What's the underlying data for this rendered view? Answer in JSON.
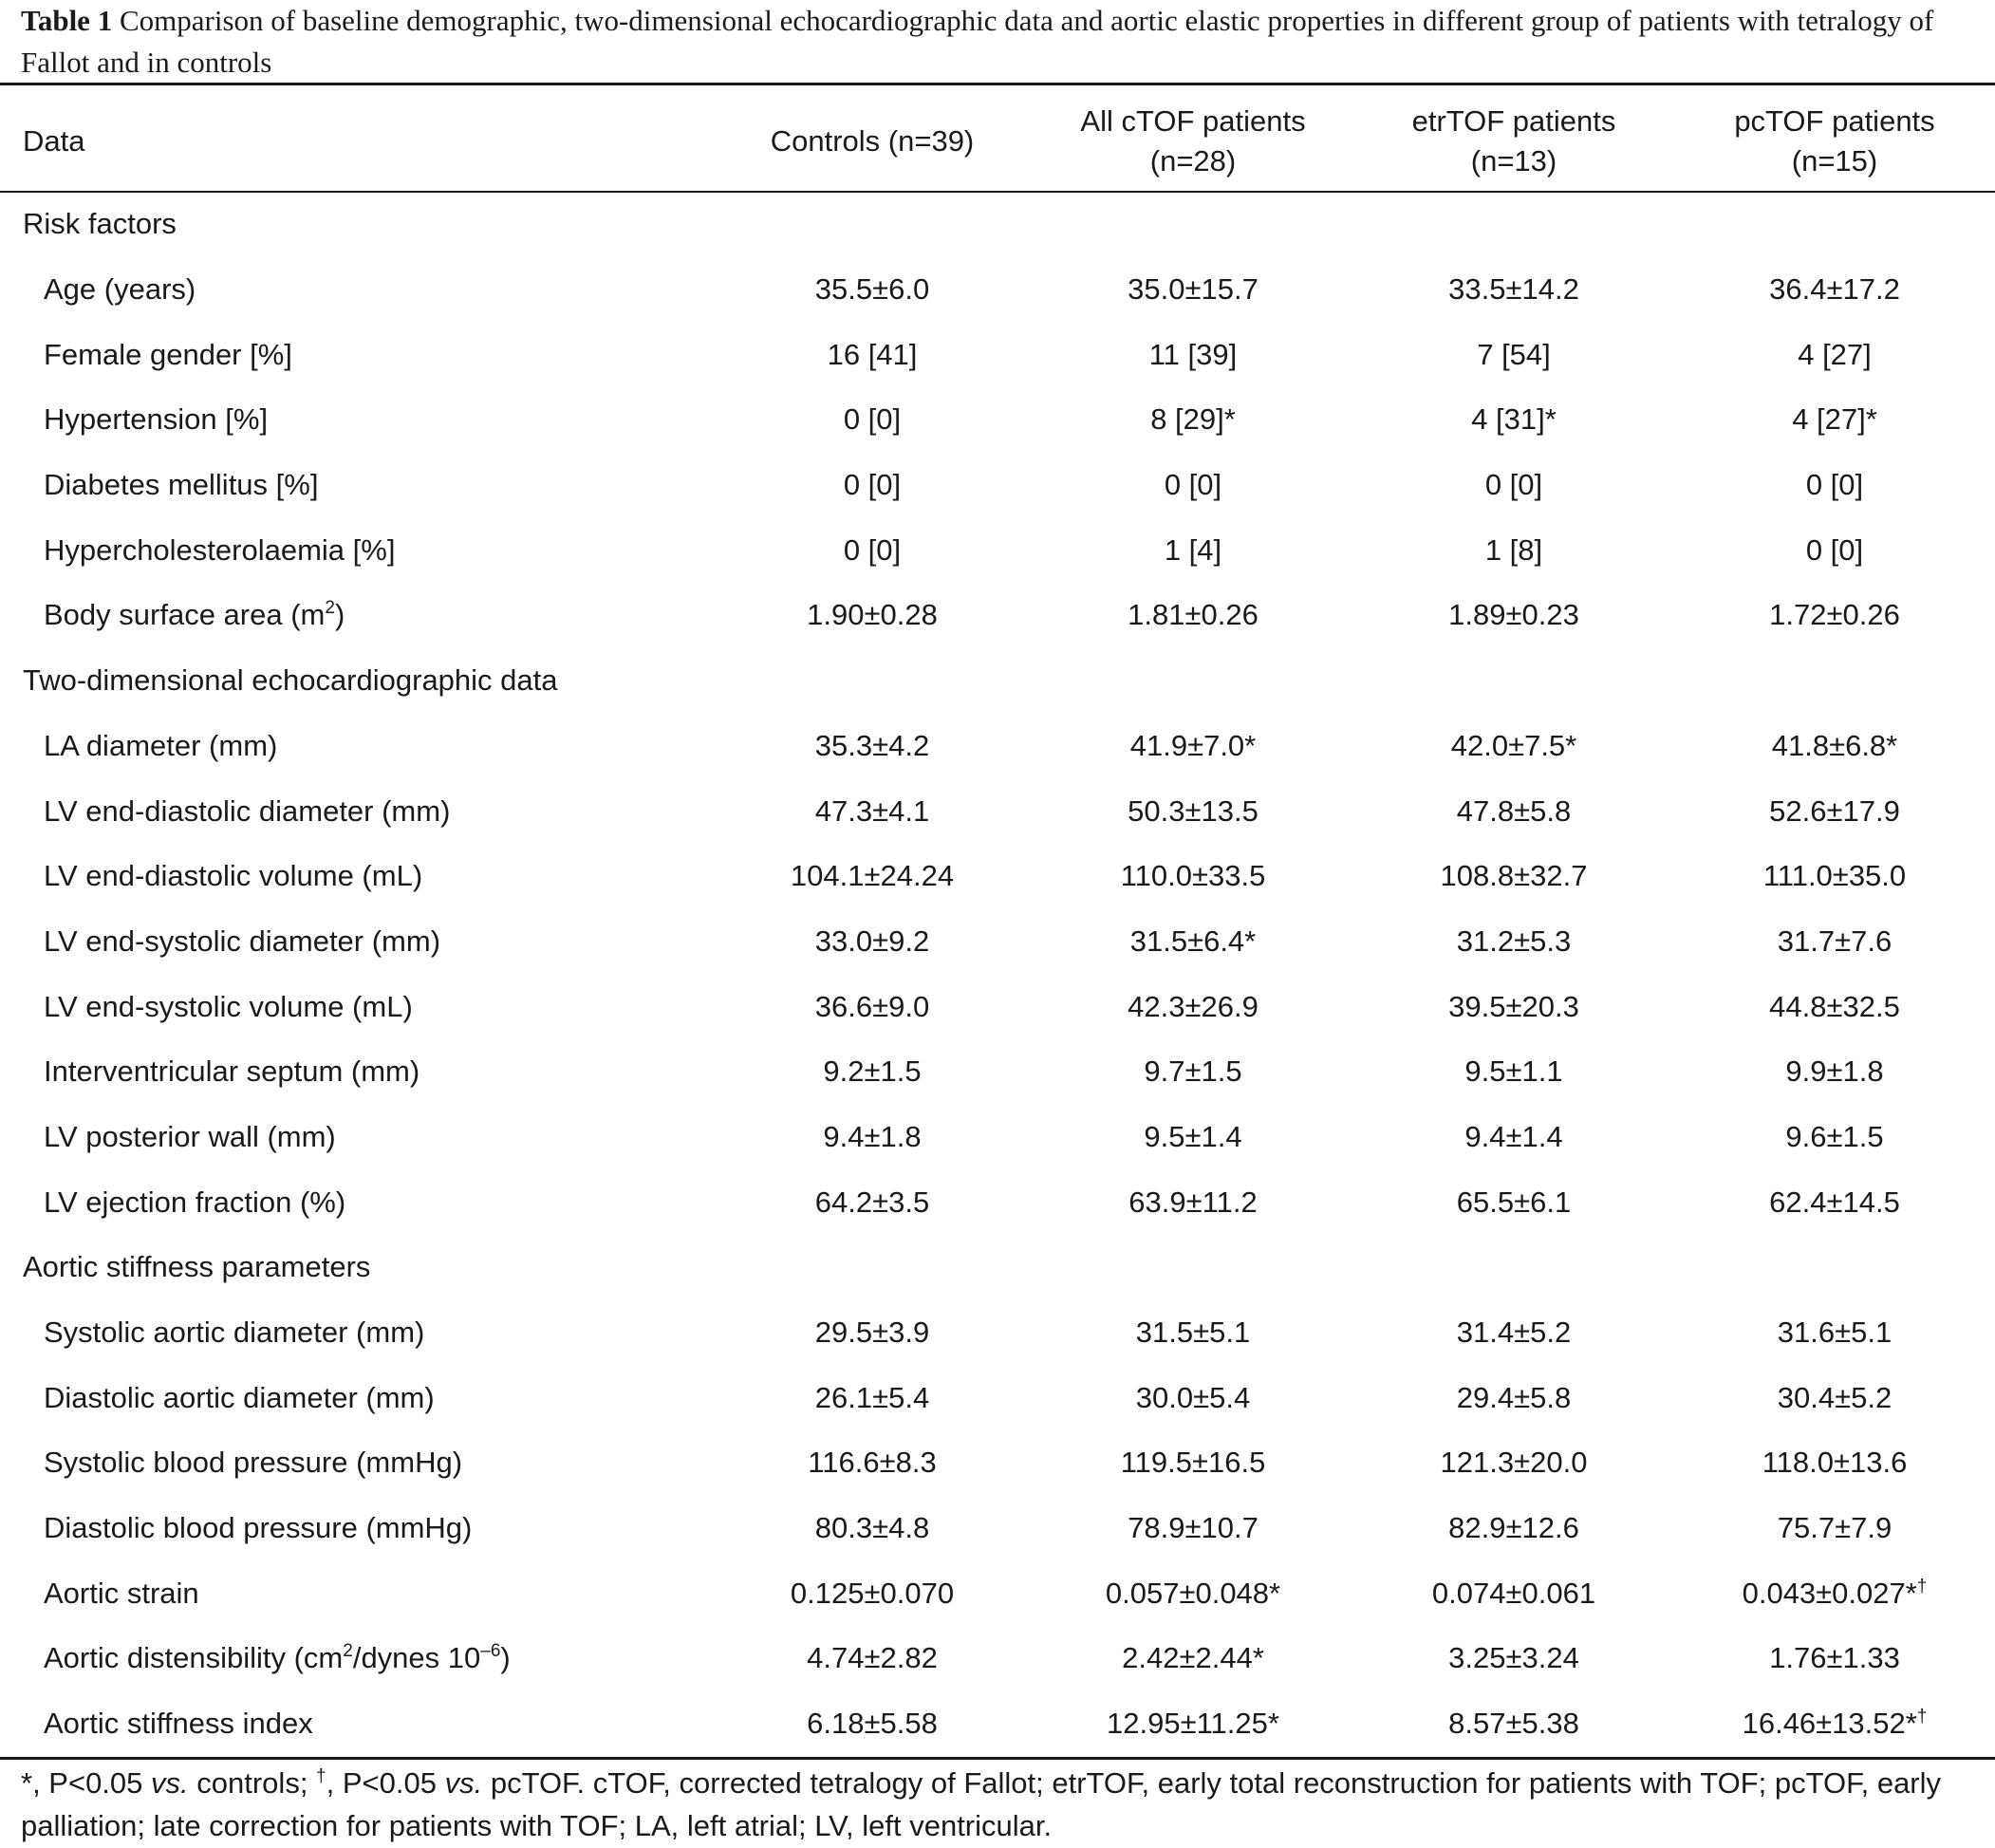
{
  "caption": {
    "tag": "Table 1",
    "text": "Comparison of baseline demographic, two-dimensional echocardiographic data and aortic elastic properties in different group of patients with tetralogy of Fallot and in controls"
  },
  "header": {
    "data": "Data",
    "controls": "Controls (n=39)",
    "all_ctof_line1": "All cTOF patients",
    "all_ctof_line2": "(n=28)",
    "etrtof_line1": "etrTOF patients",
    "etrtof_line2": "(n=13)",
    "pctof_line1": "pcTOF patients",
    "pctof_line2": "(n=15)"
  },
  "sections": {
    "risk": "Risk factors",
    "echo": "Two-dimensional echocardiographic data",
    "aortic": "Aortic stiffness parameters"
  },
  "rows": {
    "age": {
      "label": "Age (years)",
      "c": "35.5±6.0",
      "a": "35.0±15.7",
      "e": "33.5±14.2",
      "p": "36.4±17.2"
    },
    "female": {
      "label": "Female gender [%]",
      "c": "16 [41]",
      "a": "11 [39]",
      "e": "7 [54]",
      "p": "4 [27]"
    },
    "htn": {
      "label": "Hypertension [%]",
      "c": "0 [0]",
      "a": "8 [29]*",
      "e": "4 [31]*",
      "p": "4 [27]*"
    },
    "dm": {
      "label": "Diabetes mellitus [%]",
      "c": "0 [0]",
      "a": "0 [0]",
      "e": "0 [0]",
      "p": "0 [0]"
    },
    "chol": {
      "label": "Hypercholesterolaemia [%]",
      "c": "0 [0]",
      "a": "1 [4]",
      "e": "1 [8]",
      "p": "0 [0]"
    },
    "bsa": {
      "label_pre": "Body surface area (m",
      "label_sup": "2",
      "label_post": ")",
      "c": "1.90±0.28",
      "a": "1.81±0.26",
      "e": "1.89±0.23",
      "p": "1.72±0.26"
    },
    "la": {
      "label": "LA diameter (mm)",
      "c": "35.3±4.2",
      "a": "41.9±7.0*",
      "e": "42.0±7.5*",
      "p": "41.8±6.8*"
    },
    "lvedd": {
      "label": "LV end-diastolic diameter (mm)",
      "c": "47.3±4.1",
      "a": "50.3±13.5",
      "e": "47.8±5.8",
      "p": "52.6±17.9"
    },
    "lvedv": {
      "label": "LV end-diastolic volume (mL)",
      "c": "104.1±24.24",
      "a": "110.0±33.5",
      "e": "108.8±32.7",
      "p": "111.0±35.0"
    },
    "lvesd": {
      "label": "LV end-systolic diameter (mm)",
      "c": "33.0±9.2",
      "a": "31.5±6.4*",
      "e": "31.2±5.3",
      "p": "31.7±7.6"
    },
    "lvesv": {
      "label": "LV end-systolic volume (mL)",
      "c": "36.6±9.0",
      "a": "42.3±26.9",
      "e": "39.5±20.3",
      "p": "44.8±32.5"
    },
    "ivs": {
      "label": "Interventricular septum (mm)",
      "c": "9.2±1.5",
      "a": "9.7±1.5",
      "e": "9.5±1.1",
      "p": "9.9±1.8"
    },
    "lvpw": {
      "label": "LV posterior wall (mm)",
      "c": "9.4±1.8",
      "a": "9.5±1.4",
      "e": "9.4±1.4",
      "p": "9.6±1.5"
    },
    "lvef": {
      "label": "LV ejection fraction (%)",
      "c": "64.2±3.5",
      "a": "63.9±11.2",
      "e": "65.5±6.1",
      "p": "62.4±14.5"
    },
    "sad": {
      "label": "Systolic aortic diameter (mm)",
      "c": "29.5±3.9",
      "a": "31.5±5.1",
      "e": "31.4±5.2",
      "p": "31.6±5.1"
    },
    "dad": {
      "label": "Diastolic aortic diameter (mm)",
      "c": "26.1±5.4",
      "a": "30.0±5.4",
      "e": "29.4±5.8",
      "p": "30.4±5.2"
    },
    "sbp": {
      "label": "Systolic blood pressure (mmHg)",
      "c": "116.6±8.3",
      "a": "119.5±16.5",
      "e": "121.3±20.0",
      "p": "118.0±13.6"
    },
    "dbp": {
      "label": "Diastolic blood pressure (mmHg)",
      "c": "80.3±4.8",
      "a": "78.9±10.7",
      "e": "82.9±12.6",
      "p": "75.7±7.9"
    },
    "strain": {
      "label": "Aortic strain",
      "c": "0.125±0.070",
      "a": "0.057±0.048*",
      "e": "0.074±0.061",
      "p": "0.043±0.027*",
      "p_sup": "†"
    },
    "dist": {
      "label_pre": "Aortic distensibility (cm",
      "label_sup1": "2",
      "label_mid": "/dynes 10",
      "label_sup2": "–6",
      "label_post": ")",
      "c": "4.74±2.82",
      "a": "2.42±2.44*",
      "e": "3.25±3.24",
      "p": "1.76±1.33"
    },
    "asi": {
      "label": "Aortic stiffness index",
      "c": "6.18±5.58",
      "a": "12.95±11.25*",
      "e": "8.57±5.38",
      "p": "16.46±13.52*",
      "p_sup": "†"
    }
  },
  "footnote": {
    "p1": "*, P<0.05 ",
    "vs1": "vs.",
    "p2": " controls; ",
    "dagger": "†",
    "p3": ", P<0.05 ",
    "vs2": "vs.",
    "p4": " pcTOF. cTOF, corrected tetralogy of Fallot; etrTOF, early total reconstruction for patients with TOF; pcTOF, early palliation; late correction for patients with TOF; LA, left atrial; LV, left ventricular."
  }
}
